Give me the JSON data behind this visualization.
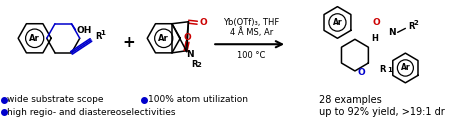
{
  "background_color": "#ffffff",
  "bullet_color": "#0000cc",
  "blue_bond_color": "#0000cc",
  "red_color": "#cc0000",
  "black": "#000000",
  "bullet_points_left": [
    "wide substrate scope",
    "high regio- and diastereoselectivities"
  ],
  "bullet_point_middle": "100% atom utilization",
  "right_text_line1": "28 examples",
  "right_text_line2": "up to 92% yield, >19:1 dr",
  "conditions_line1": "Yb(OTf)₃, THF",
  "conditions_line2": "4 Å MS, Ar",
  "conditions_line3": "100 °C",
  "figsize": [
    4.74,
    1.31
  ],
  "dpi": 100
}
